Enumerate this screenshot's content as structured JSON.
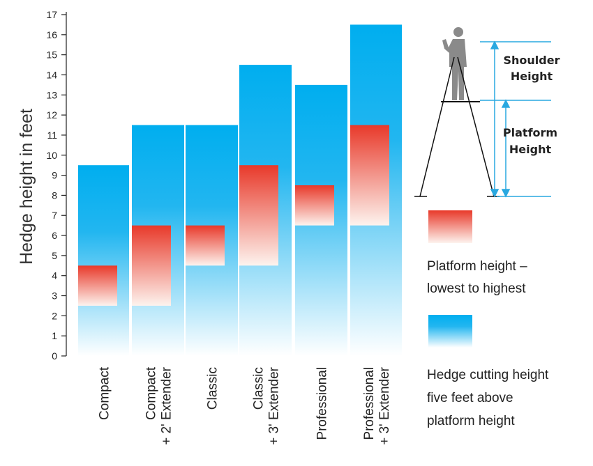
{
  "chart_data": {
    "type": "bar",
    "title": "",
    "ylabel": "Hedge height in feet",
    "xlabel": "",
    "ylim": [
      0,
      17
    ],
    "y_ticks": [
      0,
      1,
      2,
      3,
      4,
      5,
      6,
      7,
      8,
      9,
      10,
      11,
      12,
      13,
      14,
      15,
      16,
      17
    ],
    "categories": [
      {
        "line1": "Compact",
        "line2": ""
      },
      {
        "line1": "Compact",
        "line2": "+ 2' Extender"
      },
      {
        "line1": "Classic",
        "line2": ""
      },
      {
        "line1": "Classic",
        "line2": "+ 3' Extender"
      },
      {
        "line1": "Professional",
        "line2": ""
      },
      {
        "line1": "Professional",
        "line2": "+ 3' Extender"
      }
    ],
    "series": [
      {
        "name": "Hedge cutting height five feet above platform height",
        "values": [
          9.5,
          11.5,
          11.5,
          14.5,
          13.5,
          16.5
        ]
      },
      {
        "name": "Platform height – lowest to highest",
        "ranges": [
          [
            2.5,
            4.5
          ],
          [
            2.5,
            6.5
          ],
          [
            4.5,
            6.5
          ],
          [
            4.5,
            9.5
          ],
          [
            6.5,
            8.5
          ],
          [
            6.5,
            11.5
          ]
        ]
      }
    ],
    "grid": false,
    "legend_position": "right",
    "colors": {
      "hedge": "#00aeef",
      "platform": "#e8392a"
    }
  },
  "legend": {
    "platform_line1": "Platform height –",
    "platform_line2": "lowest to highest",
    "hedge_line1": "Hedge cutting height",
    "hedge_line2": "five feet above",
    "hedge_line3": "platform height"
  },
  "diagram": {
    "shoulder_line1": "Shoulder",
    "shoulder_line2": "Height",
    "platform_line1": "Platform",
    "platform_line2": "Height",
    "arrow_color": "#29a8e0"
  }
}
